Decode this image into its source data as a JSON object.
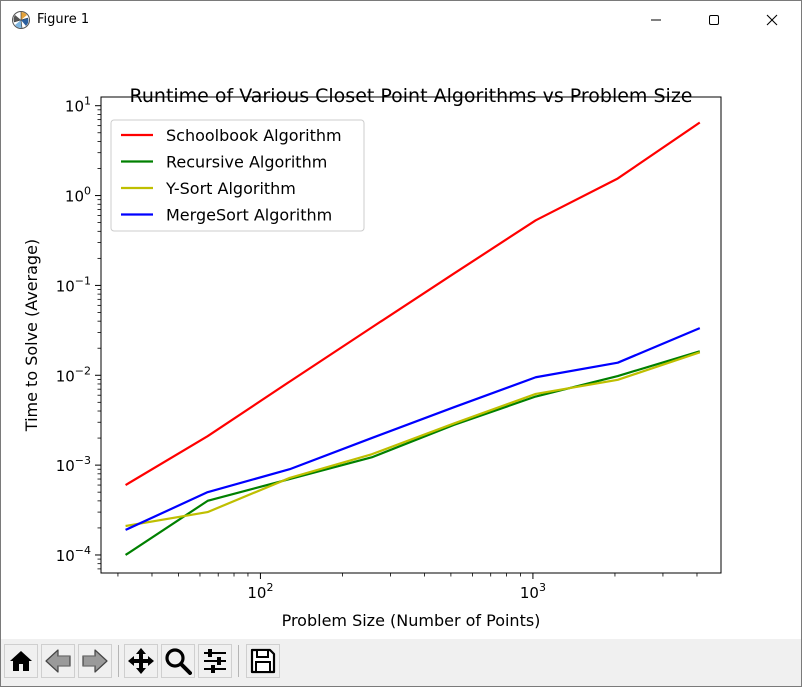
{
  "window": {
    "title": "Figure 1",
    "controls": [
      "minimize",
      "maximize",
      "close"
    ]
  },
  "toolbar": {
    "buttons": [
      {
        "name": "home",
        "icon": "home-icon"
      },
      {
        "name": "back",
        "icon": "arrow-left-icon"
      },
      {
        "name": "forward",
        "icon": "arrow-right-icon"
      },
      {
        "name": "pan",
        "icon": "move-icon"
      },
      {
        "name": "zoom",
        "icon": "magnifier-icon"
      },
      {
        "name": "configure-subplots",
        "icon": "sliders-icon"
      },
      {
        "name": "save",
        "icon": "floppy-disk-icon"
      }
    ]
  },
  "chart_data": {
    "type": "line",
    "title": "Runtime of Various Closet Point Algorithms vs Problem Size",
    "xlabel": "Problem Size (Number of Points)",
    "ylabel": "Time to Solve (Average)",
    "xscale": "log",
    "yscale": "log",
    "xlim": [
      26,
      4900
    ],
    "ylim": [
      6.3e-05,
      12.5
    ],
    "x_ticks": [
      {
        "value": 100,
        "base": "10",
        "exp": "2"
      },
      {
        "value": 1000,
        "base": "10",
        "exp": "3"
      }
    ],
    "y_ticks": [
      {
        "value": 0.0001,
        "base": "10",
        "exp": "−4"
      },
      {
        "value": 0.001,
        "base": "10",
        "exp": "−3"
      },
      {
        "value": 0.01,
        "base": "10",
        "exp": "−2"
      },
      {
        "value": 0.1,
        "base": "10",
        "exp": "−1"
      },
      {
        "value": 1,
        "base": "10",
        "exp": "0"
      },
      {
        "value": 10,
        "base": "10",
        "exp": "1"
      }
    ],
    "x": [
      32,
      64,
      128,
      256,
      512,
      1024,
      2048,
      4096
    ],
    "series": [
      {
        "name": "Schoolbook Algorithm",
        "color": "#ff0000",
        "values": [
          0.0006,
          0.0021,
          0.0085,
          0.034,
          0.135,
          0.53,
          1.55,
          6.5
        ]
      },
      {
        "name": "Recursive Algorithm",
        "color": "#008000",
        "values": [
          0.0001,
          0.0004,
          0.0007,
          0.00122,
          0.0028,
          0.0058,
          0.0098,
          0.0185
        ]
      },
      {
        "name": "Y-Sort Algorithm",
        "color": "#bfbf00",
        "values": [
          0.00021,
          0.0003,
          0.00072,
          0.00132,
          0.0029,
          0.0062,
          0.0089,
          0.018
        ]
      },
      {
        "name": "MergeSort Algorithm",
        "color": "#0000ff",
        "values": [
          0.00019,
          0.0005,
          0.0009,
          0.002,
          0.0044,
          0.0095,
          0.0138,
          0.0335
        ]
      }
    ],
    "grid": false,
    "legend_position": "upper-left"
  }
}
